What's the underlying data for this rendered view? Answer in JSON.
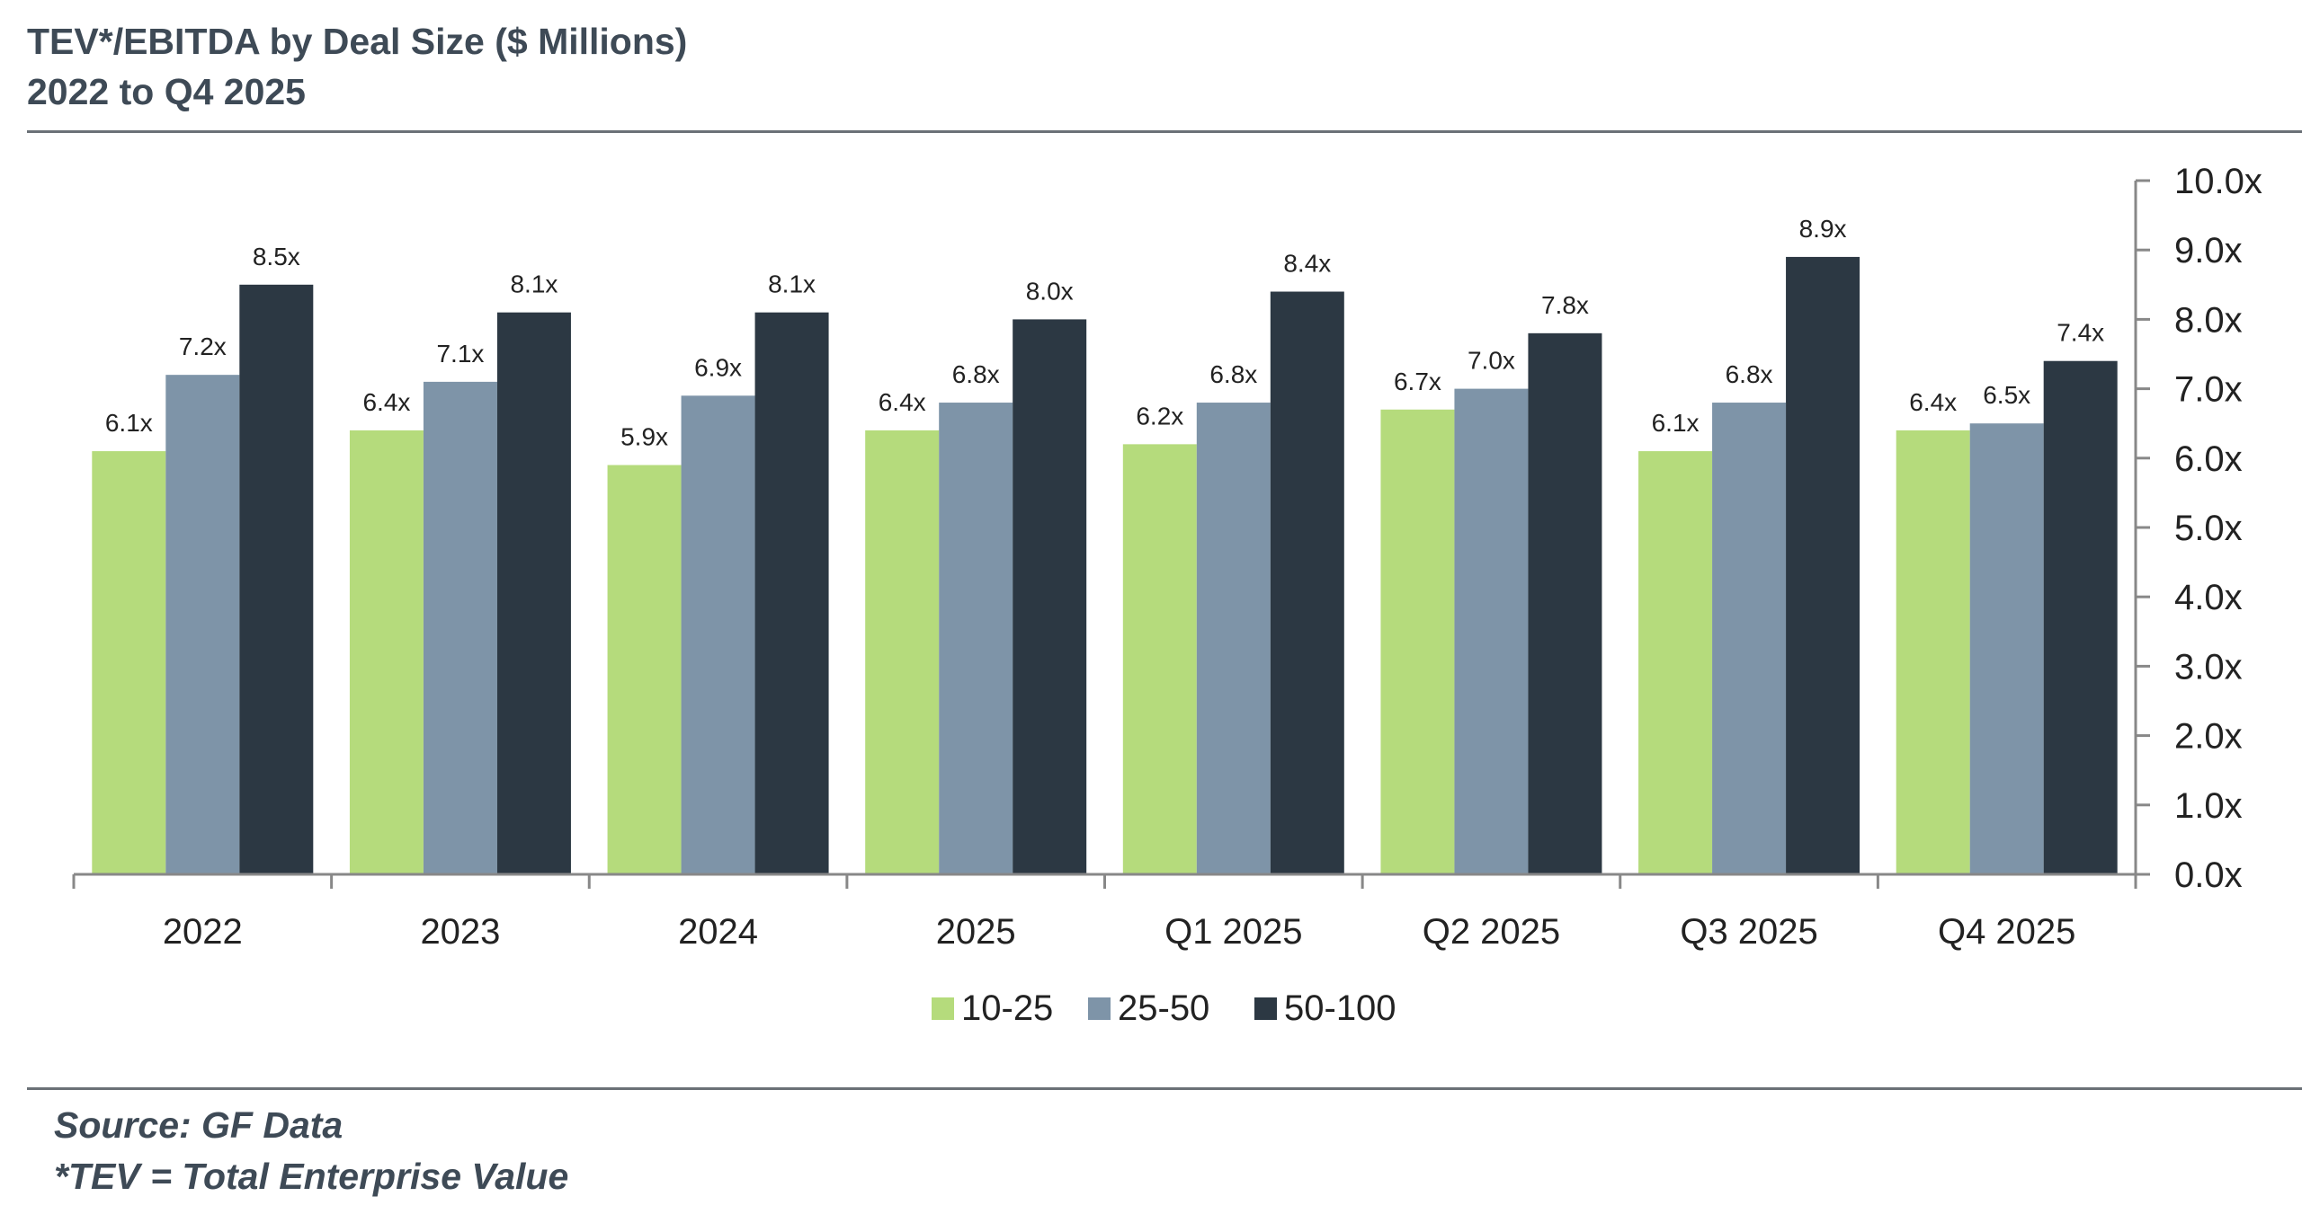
{
  "header": {
    "title": "TEV*/EBITDA by Deal Size ($ Millions)",
    "subtitle": "2022 to Q4 2025"
  },
  "footer": {
    "source": "Source: GF Data",
    "note": "*TEV = Total Enterprise Value"
  },
  "colors": {
    "series_10_25": "#b5db7c",
    "series_25_50": "#7e94a8",
    "series_50_100": "#2c3843",
    "axis": "#888888",
    "text": "#3e4a56"
  },
  "chart_data": {
    "type": "bar",
    "categories": [
      "2022",
      "2023",
      "2024",
      "2025",
      "Q1 2025",
      "Q2 2025",
      "Q3 2025",
      "Q4 2025"
    ],
    "series": [
      {
        "name": "10-25",
        "values": [
          6.1,
          6.4,
          5.9,
          6.4,
          6.2,
          6.7,
          6.1,
          6.4
        ],
        "labels": [
          "6.1x",
          "6.4x",
          "5.9x",
          "6.4x",
          "6.2x",
          "6.7x",
          "6.1x",
          "6.4x"
        ]
      },
      {
        "name": "25-50",
        "values": [
          7.2,
          7.1,
          6.9,
          6.8,
          6.8,
          7.0,
          6.8,
          6.5
        ],
        "labels": [
          "7.2x",
          "7.1x",
          "6.9x",
          "6.8x",
          "6.8x",
          "7.0x",
          "6.8x",
          "6.5x"
        ]
      },
      {
        "name": "50-100",
        "values": [
          8.5,
          8.1,
          8.1,
          8.0,
          8.4,
          7.8,
          8.9,
          7.4
        ],
        "labels": [
          "8.5x",
          "8.1x",
          "8.1x",
          "8.0x",
          "8.4x",
          "7.8x",
          "8.9x",
          "7.4x"
        ]
      }
    ],
    "yaxis": {
      "position": "right",
      "ylim": [
        0,
        10
      ],
      "ticks": [
        0,
        1,
        2,
        3,
        4,
        5,
        6,
        7,
        8,
        9,
        10
      ],
      "tick_labels": [
        "0.0x",
        "1.0x",
        "2.0x",
        "3.0x",
        "4.0x",
        "5.0x",
        "6.0x",
        "7.0x",
        "8.0x",
        "9.0x",
        "10.0x"
      ]
    },
    "grid": false,
    "legend": "bottom-center"
  }
}
